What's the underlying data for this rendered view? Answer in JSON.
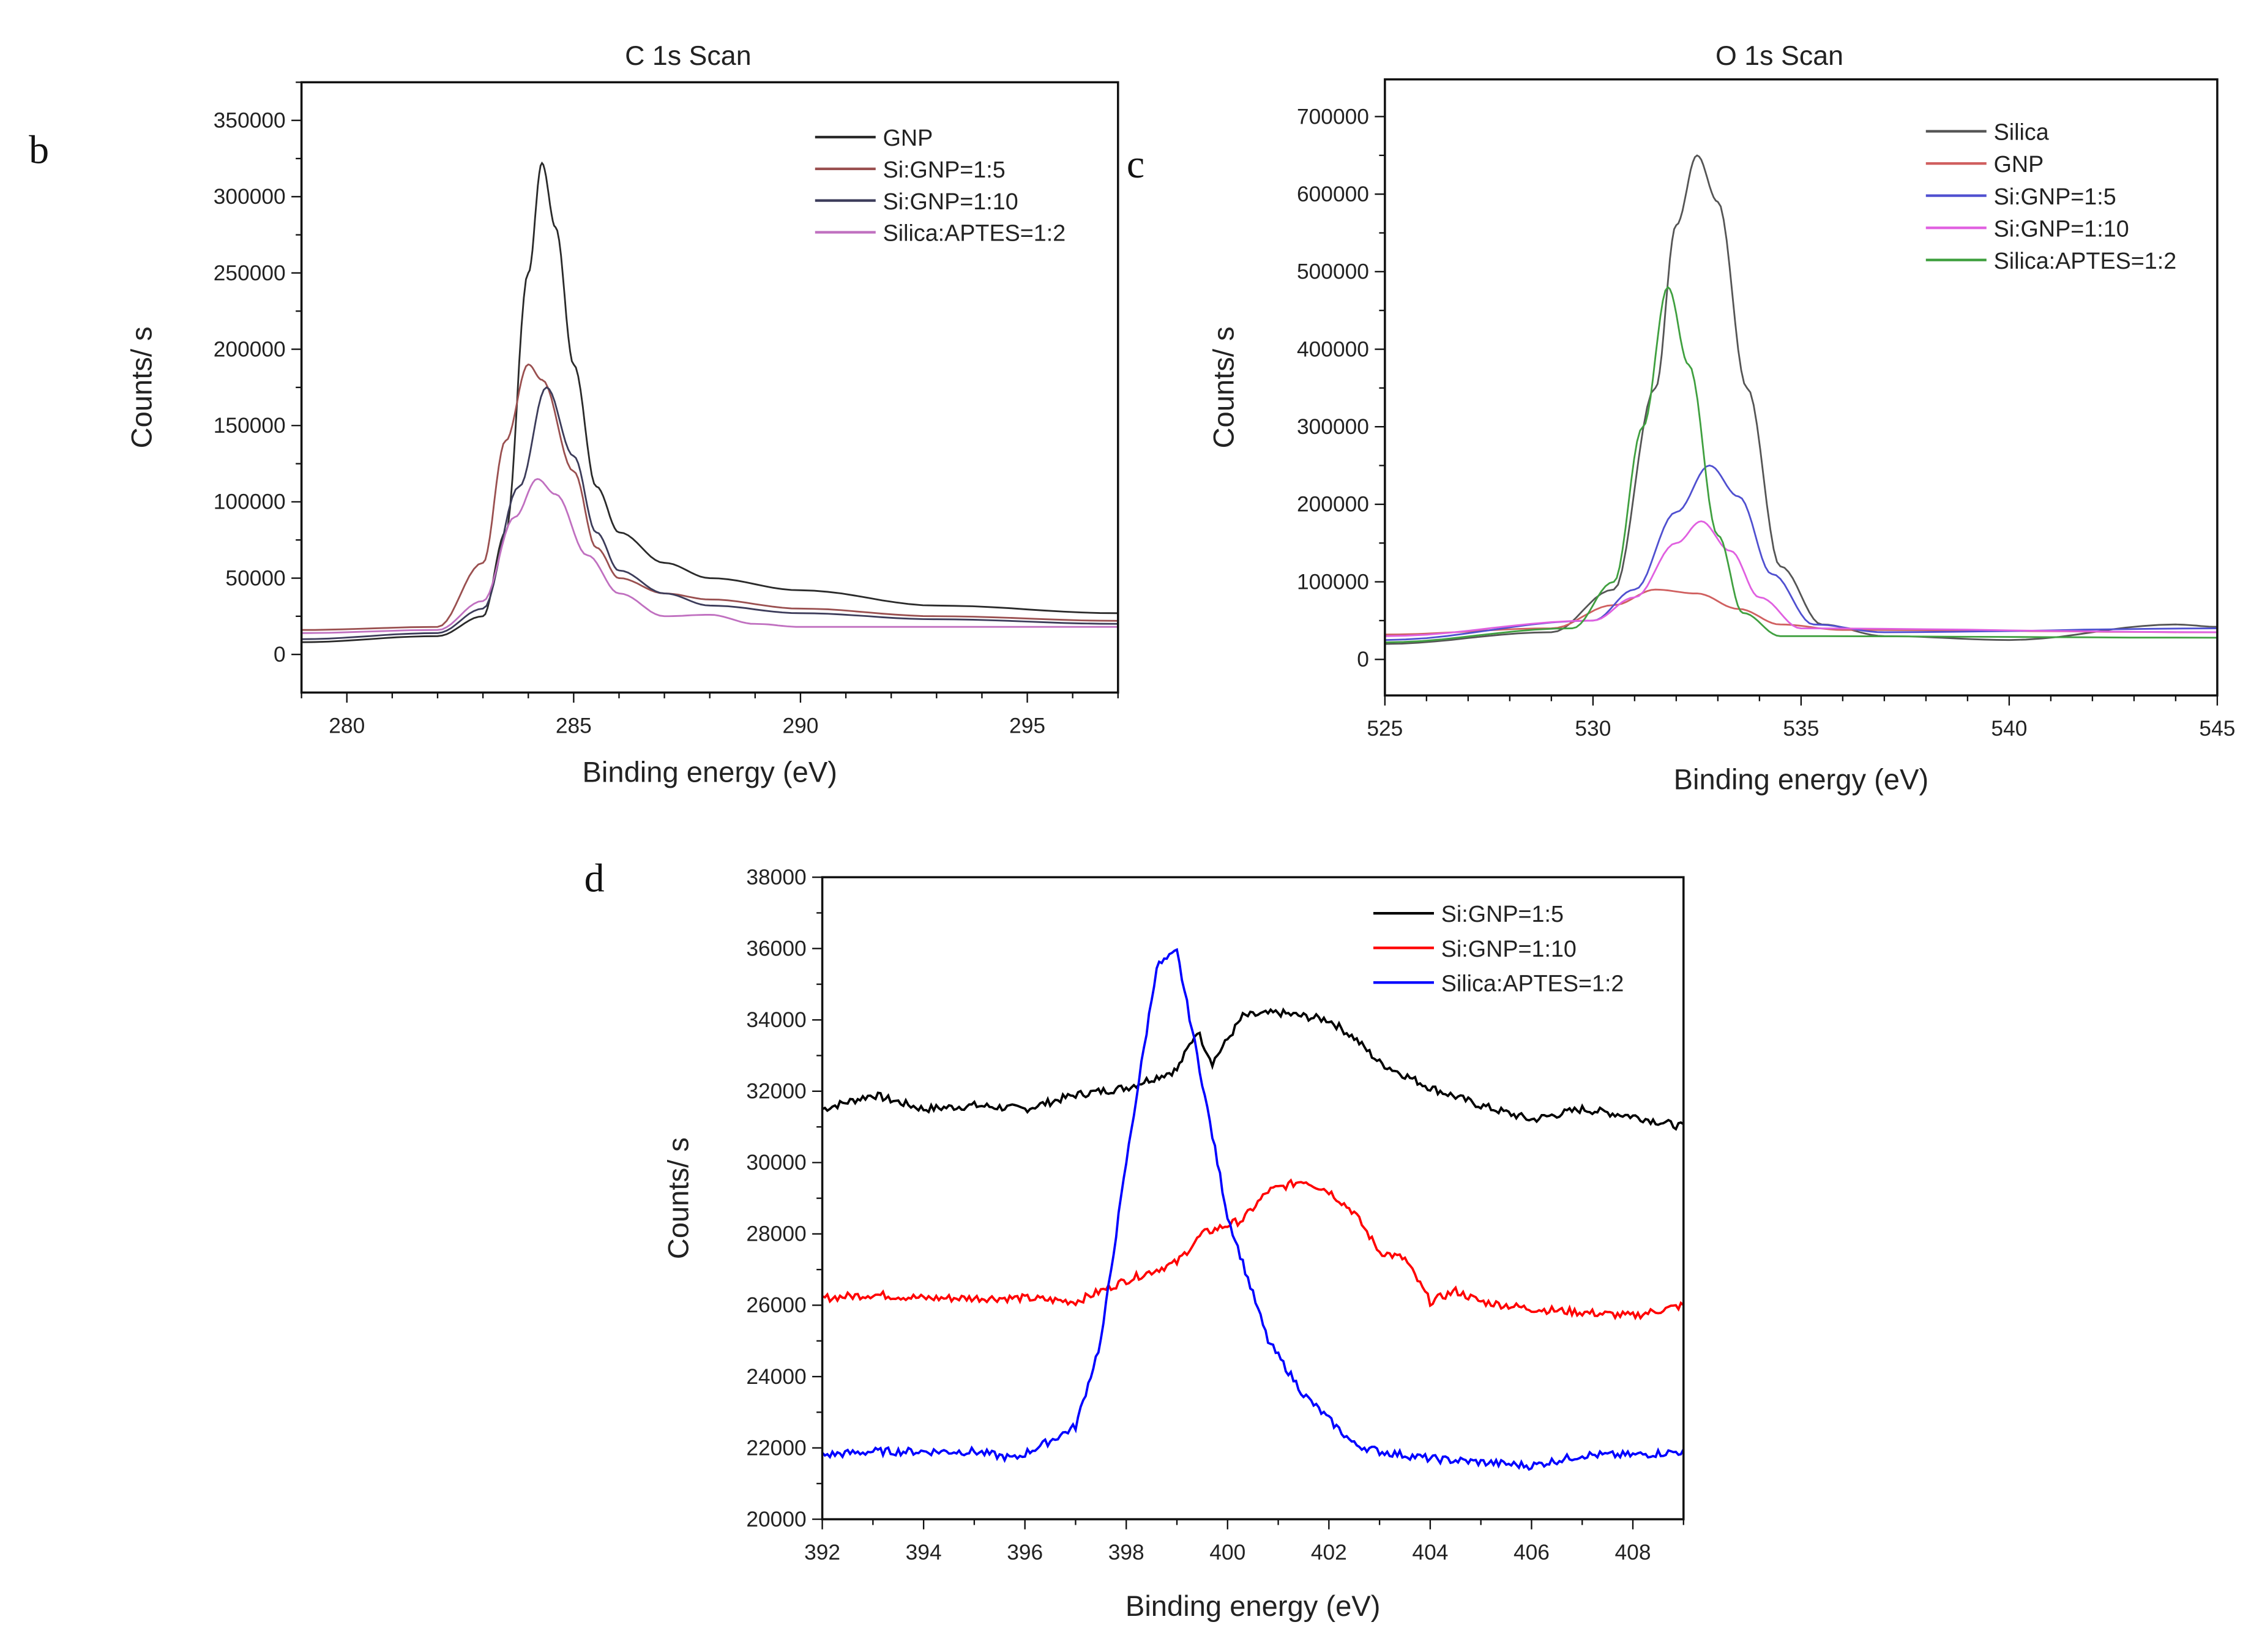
{
  "chart_data": [
    {
      "panel": "b",
      "type": "line",
      "title": "C 1s Scan",
      "xlabel": "Binding energy (eV)",
      "ylabel": "Counts/ s",
      "xlim": [
        279,
        297
      ],
      "ylim": [
        -25000,
        375000
      ],
      "xticks": [
        280,
        285,
        290,
        295
      ],
      "yticks": [
        0,
        50000,
        100000,
        150000,
        200000,
        250000,
        300000,
        350000
      ],
      "legend": "top-right",
      "series": [
        {
          "name": "GNP",
          "color": "#2a2a2a",
          "x": [
            279,
            282,
            283,
            283.5,
            284,
            284.3,
            284.6,
            285,
            285.5,
            286,
            287,
            288,
            290,
            293,
            297
          ],
          "y": [
            8000,
            12000,
            25000,
            80000,
            250000,
            322000,
            280000,
            190000,
            110000,
            80000,
            60000,
            50000,
            42000,
            32000,
            27000
          ]
        },
        {
          "name": "Si:GNP=1:5",
          "color": "#9a5050",
          "x": [
            279,
            282,
            283,
            283.5,
            284,
            284.3,
            285,
            285.5,
            286,
            287,
            288,
            290,
            293,
            297
          ],
          "y": [
            16000,
            18000,
            60000,
            140000,
            190000,
            180000,
            120000,
            70000,
            50000,
            40000,
            36000,
            30000,
            25000,
            22000
          ]
        },
        {
          "name": "Si:GNP=1:10",
          "color": "#3c3c5a",
          "x": [
            279,
            282,
            283,
            283.8,
            284.4,
            285,
            285.5,
            286,
            287,
            288,
            290,
            293,
            297
          ],
          "y": [
            10000,
            14000,
            30000,
            110000,
            175000,
            130000,
            80000,
            55000,
            40000,
            32000,
            27000,
            23000,
            20000
          ]
        },
        {
          "name": "Silica:APTES=1:2",
          "color": "#c070c0",
          "x": [
            279,
            282,
            283,
            283.7,
            284.2,
            284.6,
            285.3,
            286,
            287,
            288,
            289,
            290,
            297
          ],
          "y": [
            14000,
            16000,
            35000,
            90000,
            115000,
            105000,
            65000,
            40000,
            25000,
            26000,
            20000,
            18000,
            18000
          ]
        }
      ]
    },
    {
      "panel": "c",
      "type": "line",
      "title": "O 1s Scan",
      "xlabel": "Binding energy (eV)",
      "ylabel": "Counts/ s",
      "xlim": [
        525,
        545
      ],
      "ylim": [
        -46500,
        748000
      ],
      "xticks": [
        525,
        530,
        535,
        540,
        545
      ],
      "yticks": [
        0,
        100000,
        200000,
        300000,
        400000,
        500000,
        600000,
        700000
      ],
      "legend": "top-right",
      "series": [
        {
          "name": "Silica",
          "color": "#555555",
          "x": [
            525,
            529,
            530.5,
            531.5,
            532,
            532.5,
            533,
            533.7,
            534.5,
            535.5,
            537,
            540,
            544,
            545
          ],
          "y": [
            20000,
            35000,
            90000,
            350000,
            560000,
            650000,
            590000,
            350000,
            120000,
            45000,
            30000,
            25000,
            45000,
            42000
          ]
        },
        {
          "name": "GNP",
          "color": "#d06060",
          "x": [
            525,
            529,
            530.5,
            531.5,
            532.5,
            533.5,
            534.5,
            536,
            545
          ],
          "y": [
            32000,
            40000,
            70000,
            90000,
            85000,
            65000,
            45000,
            38000,
            35000
          ]
        },
        {
          "name": "Si:GNP=1:5",
          "color": "#5050d0",
          "x": [
            525,
            530,
            531,
            532,
            532.8,
            533.5,
            534.3,
            535.3,
            537,
            545
          ],
          "y": [
            25000,
            50000,
            90000,
            190000,
            250000,
            210000,
            110000,
            45000,
            35000,
            40000
          ]
        },
        {
          "name": "Si:GNP=1:10",
          "color": "#e060e0",
          "x": [
            525,
            530,
            531,
            532,
            532.6,
            533.3,
            534,
            535,
            545
          ],
          "y": [
            30000,
            50000,
            80000,
            150000,
            178000,
            140000,
            80000,
            40000,
            35000
          ]
        },
        {
          "name": "Silica:APTES=1:2",
          "color": "#40a040",
          "x": [
            525,
            529.5,
            530.5,
            531.2,
            531.8,
            532.3,
            533,
            533.6,
            534.5,
            545
          ],
          "y": [
            22000,
            40000,
            100000,
            300000,
            480000,
            380000,
            160000,
            60000,
            30000,
            28000
          ]
        }
      ]
    },
    {
      "panel": "d",
      "type": "line",
      "title": "",
      "xlabel": "Binding energy (eV)",
      "ylabel": "Counts/ s",
      "xlim": [
        392,
        409
      ],
      "ylim": [
        20000,
        38000
      ],
      "xticks": [
        392,
        394,
        396,
        398,
        400,
        402,
        404,
        406,
        408
      ],
      "yticks": [
        20000,
        22000,
        24000,
        26000,
        28000,
        30000,
        32000,
        34000,
        36000,
        38000
      ],
      "legend": "top-right",
      "series": [
        {
          "name": "Si:GNP=1:5",
          "color": "#000000",
          "x": [
            392,
            393,
            394,
            395,
            396,
            397,
            398,
            399,
            399.4,
            399.7,
            400.3,
            401,
            401.5,
            402,
            402.5,
            403,
            404,
            405,
            406,
            407,
            408,
            409
          ],
          "y": [
            31500,
            31900,
            31500,
            31600,
            31500,
            31900,
            32100,
            32600,
            33700,
            32800,
            34100,
            34200,
            34100,
            34000,
            33500,
            32800,
            32100,
            31600,
            31200,
            31500,
            31300,
            31000
          ]
        },
        {
          "name": "Si:GNP=1:10",
          "color": "#ff0000",
          "x": [
            392,
            393,
            394,
            395,
            396,
            397,
            398,
            399,
            399.5,
            400.3,
            400.8,
            401.5,
            402,
            402.5,
            403,
            403.5,
            404,
            404.5,
            405,
            406,
            407,
            408,
            409
          ],
          "y": [
            26200,
            26300,
            26200,
            26200,
            26200,
            26100,
            26700,
            27200,
            28000,
            28400,
            29200,
            29500,
            29200,
            28600,
            27500,
            27300,
            26100,
            26400,
            26100,
            25900,
            25800,
            25700,
            26000
          ]
        },
        {
          "name": "Silica:APTES=1:2",
          "color": "#0000ff",
          "x": [
            392,
            393,
            394,
            395,
            395.8,
            396.5,
            397,
            397.5,
            398,
            398.6,
            399,
            399.4,
            400,
            400.8,
            401.5,
            402.5,
            403,
            404,
            405,
            406,
            407,
            408,
            409
          ],
          "y": [
            21800,
            21900,
            21900,
            21900,
            21700,
            22200,
            22600,
            25000,
            30000,
            35500,
            35900,
            33000,
            28500,
            25000,
            23500,
            22100,
            21900,
            21700,
            21600,
            21500,
            21800,
            21800,
            21900
          ]
        }
      ]
    }
  ]
}
